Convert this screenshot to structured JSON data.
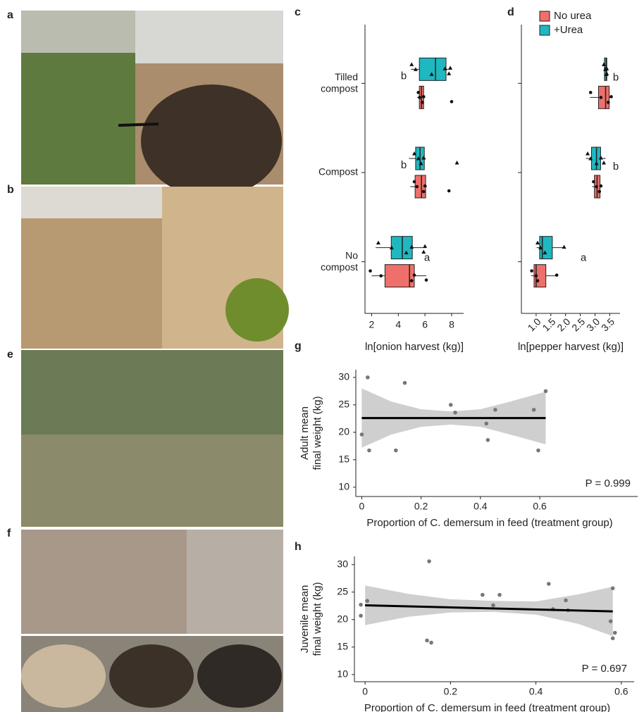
{
  "photo_labels": [
    "a",
    "b",
    "e",
    "f"
  ],
  "chart_data": [
    {
      "type": "box",
      "label": "c",
      "xlabel": "ln[onion harvest (kg)]",
      "categories": [
        "Tilled\ncompost",
        "Compost",
        "No\ncompost"
      ],
      "xlim": [
        1.5,
        8.9
      ],
      "xticks": [
        2,
        4,
        6,
        8
      ],
      "group_labels": [
        "b",
        "b",
        "a"
      ],
      "series": [
        {
          "name": "No urea",
          "color": "#ef6f6a",
          "marker": "circle",
          "min": [
            5.4,
            4.9,
            2.0
          ],
          "q1": [
            5.58,
            5.26,
            3.0
          ],
          "median": [
            5.74,
            5.74,
            4.84
          ],
          "q3": [
            5.9,
            6.05,
            5.2
          ],
          "max": [
            6.0,
            6.15,
            6.1
          ],
          "points": [
            [
              5.5,
              5.6,
              5.8,
              5.9,
              8.0
            ],
            [
              5.2,
              5.4,
              5.9,
              6.0,
              7.8
            ],
            [
              1.9,
              2.7,
              5.0,
              5.2,
              6.1
            ]
          ]
        },
        {
          "name": "+Urea",
          "color": "#1fb8c0",
          "marker": "triangle",
          "min": [
            4.95,
            4.8,
            2.3
          ],
          "q1": [
            5.58,
            5.3,
            3.47
          ],
          "median": [
            6.79,
            5.63,
            4.3
          ],
          "q3": [
            7.58,
            5.95,
            5.05
          ],
          "max": [
            7.95,
            6.05,
            5.9
          ],
          "points": [
            [
              5.0,
              5.3,
              6.5,
              7.5,
              7.8,
              7.9
            ],
            [
              5.2,
              5.5,
              5.7,
              5.9,
              8.4
            ],
            [
              2.5,
              3.5,
              4.6,
              5.0,
              5.9,
              6.0
            ]
          ]
        }
      ]
    },
    {
      "type": "box",
      "label": "d",
      "xlabel": "ln[pepper harvest (kg)]",
      "categories": [
        null,
        null,
        null
      ],
      "xlim": [
        0.5,
        3.85
      ],
      "xticks": [
        {
          "value": 1,
          "label": "1.0"
        },
        1.5,
        {
          "value": 2,
          "label": "2.0"
        },
        2.5,
        {
          "value": 3,
          "label": "3.0"
        },
        3.5
      ],
      "group_labels": [
        "b",
        "b",
        "a"
      ],
      "legend": "top",
      "series": [
        {
          "name": "No urea",
          "color": "#ef6f6a",
          "marker": "circle",
          "min": [
            2.83,
            2.9,
            0.83
          ],
          "q1": [
            3.12,
            2.98,
            0.93
          ],
          "median": [
            3.36,
            3.07,
            1.0
          ],
          "q3": [
            3.48,
            3.17,
            1.33
          ],
          "max": [
            3.6,
            3.24,
            1.71
          ],
          "points": [
            [
              2.85,
              3.2,
              3.45,
              3.55
            ],
            [
              2.95,
              3.05,
              3.15,
              3.2
            ],
            [
              0.85,
              1.0,
              1.05,
              1.7
            ]
          ]
        },
        {
          "name": "+Urea",
          "color": "#1fb8c0",
          "marker": "triangle",
          "min": [
            3.3,
            2.69,
            1.02
          ],
          "q1": [
            3.32,
            2.88,
            1.12
          ],
          "median": [
            3.38,
            3.05,
            1.21
          ],
          "q3": [
            3.4,
            3.19,
            1.55
          ],
          "max": [
            3.42,
            3.36,
            1.95
          ],
          "points": [
            [
              3.3,
              3.35,
              3.38,
              3.4,
              3.4
            ],
            [
              2.75,
              2.85,
              3.05,
              3.2,
              3.3
            ],
            [
              1.05,
              1.15,
              1.3,
              1.95
            ]
          ]
        }
      ]
    },
    {
      "type": "scatter",
      "label": "g",
      "ylabel": "Adult mean\nfinal weight (kg)",
      "xlabel": "Proportion of C. demersum in feed (treatment group)",
      "annotation": "P = 0.999",
      "xlim": [
        -0.02,
        0.93
      ],
      "xticks": [
        0,
        0.2,
        0.4,
        0.6
      ],
      "ylim": [
        8.3,
        31.4
      ],
      "yticks": [
        10,
        15,
        20,
        25,
        30
      ],
      "color": "#777777",
      "x": [
        0,
        0.02,
        0.025,
        0.115,
        0.145,
        0.3,
        0.315,
        0.42,
        0.425,
        0.45,
        0.58,
        0.595,
        0.62
      ],
      "y": [
        19.6,
        30.0,
        16.7,
        16.7,
        29.0,
        25.0,
        23.6,
        21.6,
        18.6,
        24.1,
        24.1,
        16.7,
        27.5
      ],
      "fit": {
        "x": [
          0,
          0.62
        ],
        "y": [
          22.6,
          22.6
        ]
      },
      "ci": {
        "x": [
          0,
          0.1,
          0.2,
          0.3,
          0.4,
          0.5,
          0.62
        ],
        "lower": [
          17.2,
          19.6,
          21.0,
          21.4,
          21.0,
          19.6,
          17.8
        ],
        "upper": [
          28.0,
          25.6,
          24.2,
          23.8,
          24.2,
          25.6,
          27.4
        ]
      }
    },
    {
      "type": "scatter",
      "label": "h",
      "ylabel": "Juvenile mean\nfinal weight (kg)",
      "xlabel": "Proportion of C. demersum in feed (treatment group)",
      "annotation": "P = 0.697",
      "xlim": [
        -0.025,
        0.63
      ],
      "xticks": [
        0,
        0.2,
        0.4,
        0.6
      ],
      "ylim": [
        8.7,
        31.5
      ],
      "yticks": [
        10,
        15,
        20,
        25,
        30
      ],
      "color": "#777777",
      "x": [
        -0.01,
        -0.01,
        0.005,
        0.145,
        0.155,
        0.15,
        0.275,
        0.3,
        0.315,
        0.43,
        0.44,
        0.47,
        0.475,
        0.58,
        0.575,
        0.58,
        0.585
      ],
      "y": [
        22.7,
        20.7,
        23.4,
        16.2,
        15.8,
        30.6,
        24.5,
        22.6,
        24.5,
        26.5,
        21.9,
        23.5,
        21.7,
        25.7,
        19.7,
        16.6,
        17.6
      ],
      "fit": {
        "x": [
          0,
          0.58
        ],
        "y": [
          22.6,
          21.5
        ]
      },
      "ci": {
        "x": [
          0,
          0.1,
          0.2,
          0.3,
          0.4,
          0.5,
          0.58
        ],
        "lower": [
          19.0,
          20.5,
          21.3,
          21.4,
          20.9,
          19.2,
          17.0
        ],
        "upper": [
          26.2,
          24.7,
          23.7,
          23.4,
          23.3,
          24.6,
          26.0
        ]
      }
    }
  ]
}
